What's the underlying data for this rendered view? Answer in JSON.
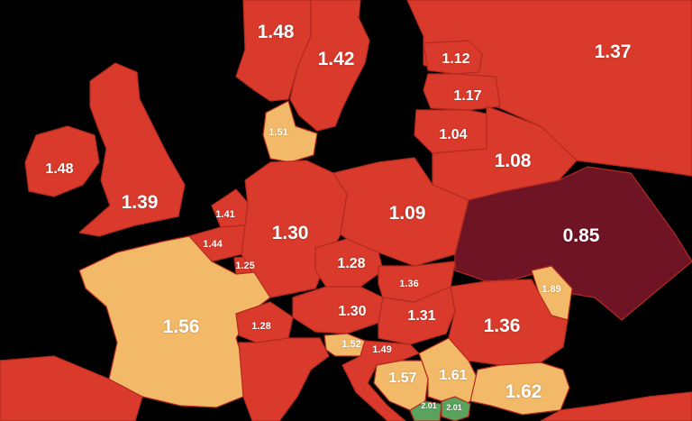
{
  "legend_colors": {
    "background": "#000000",
    "dark_red": "#6e1424",
    "red": "#d93a2b",
    "orange": "#f2b968",
    "green": "#59a35c",
    "border": "#b32a1f"
  },
  "regions": [
    {
      "id": "norway",
      "value": "1.48",
      "color": "red"
    },
    {
      "id": "sweden",
      "value": "1.42",
      "color": "red"
    },
    {
      "id": "finland",
      "value": "1.37",
      "color": "red"
    },
    {
      "id": "estonia",
      "value": "1.12",
      "color": "red"
    },
    {
      "id": "latvia",
      "value": "1.17",
      "color": "red"
    },
    {
      "id": "lithuania",
      "value": "1.04",
      "color": "red"
    },
    {
      "id": "belarus",
      "value": "1.08",
      "color": "red"
    },
    {
      "id": "ireland",
      "value": "1.48",
      "color": "red"
    },
    {
      "id": "united-kingdom",
      "value": "1.39",
      "color": "red"
    },
    {
      "id": "denmark",
      "value": "1.51",
      "color": "orange"
    },
    {
      "id": "netherlands",
      "value": "1.41",
      "color": "red"
    },
    {
      "id": "belgium",
      "value": "1.44",
      "color": "red"
    },
    {
      "id": "luxembourg",
      "value": "1.25",
      "color": "red"
    },
    {
      "id": "germany",
      "value": "1.30",
      "color": "red"
    },
    {
      "id": "poland",
      "value": "1.09",
      "color": "red"
    },
    {
      "id": "ukraine",
      "value": "0.85",
      "color": "dark_red"
    },
    {
      "id": "czechia",
      "value": "1.28",
      "color": "red"
    },
    {
      "id": "slovakia",
      "value": "1.36",
      "color": "red"
    },
    {
      "id": "moldova",
      "value": "1.89",
      "color": "orange"
    },
    {
      "id": "france",
      "value": "1.56",
      "color": "orange"
    },
    {
      "id": "switzerland",
      "value": "1.28",
      "color": "red"
    },
    {
      "id": "austria",
      "value": "1.30",
      "color": "red"
    },
    {
      "id": "hungary",
      "value": "1.31",
      "color": "red"
    },
    {
      "id": "romania",
      "value": "1.36",
      "color": "red"
    },
    {
      "id": "slovenia",
      "value": "1.52",
      "color": "orange"
    },
    {
      "id": "croatia",
      "value": "1.49",
      "color": "red"
    },
    {
      "id": "bosnia",
      "value": "1.57",
      "color": "orange"
    },
    {
      "id": "serbia",
      "value": "1.61",
      "color": "orange"
    },
    {
      "id": "bulgaria",
      "value": "1.62",
      "color": "orange"
    },
    {
      "id": "montenegro",
      "value": "2.01",
      "color": "green"
    },
    {
      "id": "kosovo",
      "value": "2.01",
      "color": "green"
    }
  ]
}
